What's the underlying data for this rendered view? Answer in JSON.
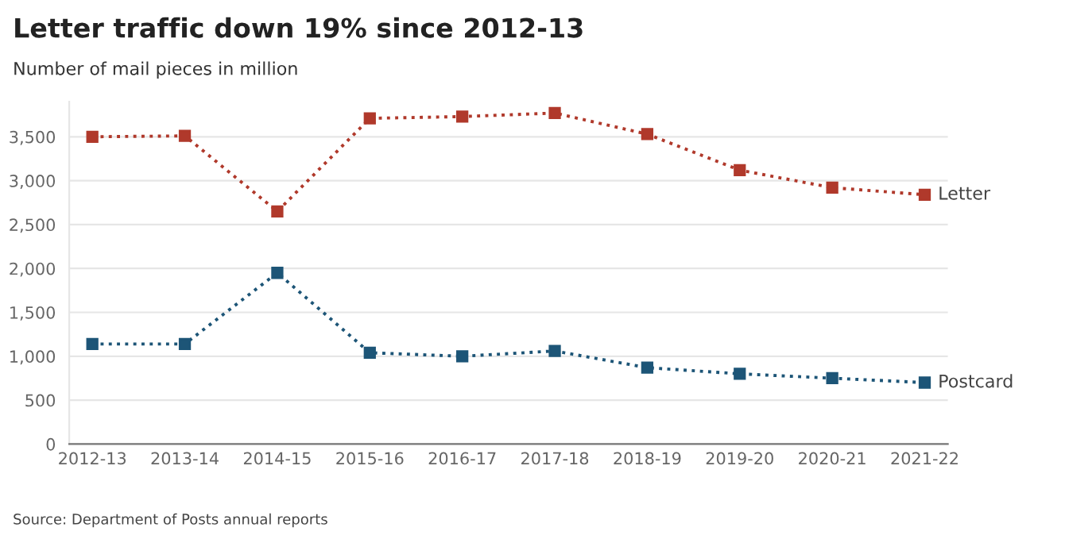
{
  "chart_data": {
    "type": "line",
    "title": "Letter traffic down 19% since 2012-13",
    "subtitle": "Number of mail pieces in million",
    "categories": [
      "2012-13",
      "2013-14",
      "2014-15",
      "2015-16",
      "2016-17",
      "2017-18",
      "2018-19",
      "2019-20",
      "2020-21",
      "2021-22"
    ],
    "series": [
      {
        "name": "Letter",
        "color": "#b0392b",
        "values": [
          3500,
          3510,
          2650,
          3710,
          3730,
          3770,
          3530,
          3120,
          2920,
          2840
        ]
      },
      {
        "name": "Postcard",
        "color": "#1d5577",
        "values": [
          1140,
          1140,
          1950,
          1040,
          1000,
          1060,
          870,
          800,
          750,
          700
        ]
      }
    ],
    "ylim": [
      0,
      3900
    ],
    "yticks": [
      {
        "value": 0,
        "label": "0"
      },
      {
        "value": 500,
        "label": "500"
      },
      {
        "value": 1000,
        "label": "1,000"
      },
      {
        "value": 1500,
        "label": "1,500"
      },
      {
        "value": 2000,
        "label": "2,000"
      },
      {
        "value": 2500,
        "label": "2,500"
      },
      {
        "value": 3000,
        "label": "3,000"
      },
      {
        "value": 3500,
        "label": "3,500"
      }
    ],
    "grid": "y",
    "marker": "square",
    "line_style": "dotted",
    "annotations": [
      "Source: Department of Posts annual reports"
    ]
  }
}
